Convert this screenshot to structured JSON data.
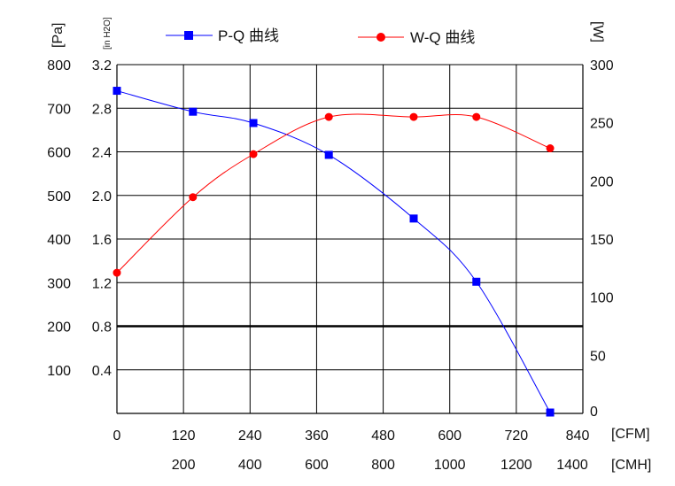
{
  "chart_data": {
    "type": "line",
    "x_unit_primary": "[CFM]",
    "x_unit_secondary": "[CMH]",
    "y_unit_left_primary": "[Pa]",
    "y_unit_left_secondary": "[in H2O]",
    "y_unit_right": "[W]",
    "x_ticks_cfm": [
      "0",
      "120",
      "240",
      "360",
      "480",
      "600",
      "720",
      "840"
    ],
    "x_ticks_cmh": [
      "200",
      "400",
      "600",
      "800",
      "1000",
      "1200",
      "1400"
    ],
    "y_ticks_pa": [
      "100",
      "200",
      "300",
      "400",
      "500",
      "600",
      "700",
      "800"
    ],
    "y_ticks_inh2o": [
      "0.4",
      "0.8",
      "1.2",
      "1.6",
      "2.0",
      "2.4",
      "2.8",
      "3.2"
    ],
    "y_ticks_w": [
      "0",
      "50",
      "100",
      "150",
      "200",
      "250",
      "300"
    ],
    "xlim": [
      0,
      840
    ],
    "ylim_pa": [
      0,
      800
    ],
    "ylim_w": [
      0,
      300
    ],
    "grid": true,
    "highlight_line_pa": 200,
    "legend_placement": "top",
    "series": [
      {
        "name": "P-Q 曲线",
        "axis": "left",
        "color": "#0000ff",
        "marker": "square",
        "x": [
          0,
          137,
          246,
          382,
          535,
          648,
          781
        ],
        "y": [
          740,
          692,
          666,
          593,
          447,
          302,
          2
        ]
      },
      {
        "name": "W-Q 曲线",
        "axis": "right",
        "color": "#ff0000",
        "marker": "circle",
        "x": [
          0,
          137,
          246,
          382,
          535,
          648,
          781
        ],
        "y": [
          121,
          186,
          223,
          255,
          255,
          255,
          228
        ]
      }
    ]
  }
}
